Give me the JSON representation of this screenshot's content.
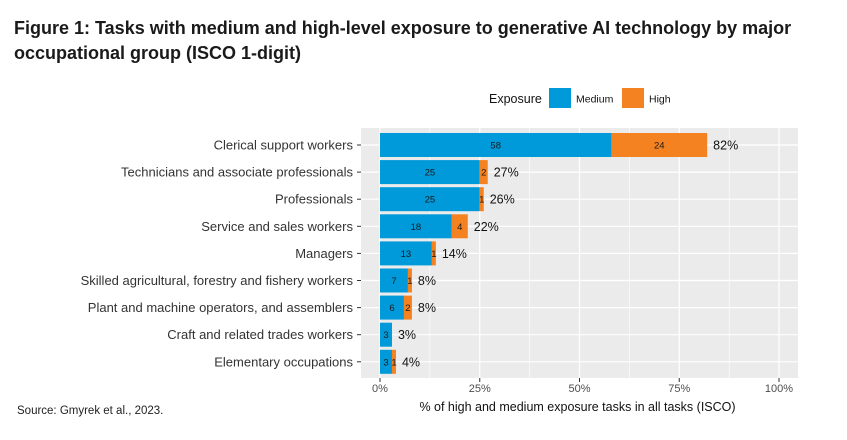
{
  "title": "Figure 1: Tasks with medium and high-level exposure to generative AI technology by major occupational group (ISCO 1-digit)",
  "source": "Source: Gmyrek et al., 2023.",
  "colors": {
    "medium": "#0099D9",
    "high": "#F58220",
    "panel": "#EBEBEB",
    "grid": "#FFFFFF"
  },
  "chart_data": {
    "type": "bar",
    "orientation": "horizontal",
    "stacked": true,
    "title": "Figure 1: Tasks with medium and high-level exposure to generative AI technology by major occupational group (ISCO 1-digit)",
    "xlabel": "% of high and medium exposure tasks in all tasks (ISCO)",
    "ylabel": "",
    "xlim": [
      0,
      100
    ],
    "x_ticks": [
      "0%",
      "25%",
      "50%",
      "75%",
      "100%"
    ],
    "x_tick_values": [
      0,
      25,
      50,
      75,
      100
    ],
    "legend": {
      "title": "Exposure",
      "position": "top-right",
      "entries": [
        "Medium",
        "High"
      ]
    },
    "categories": [
      "Clerical support workers",
      "Technicians and associate professionals",
      "Professionals",
      "Service and sales workers",
      "Managers",
      "Skilled agricultural, forestry and fishery workers",
      "Plant and machine operators, and assemblers",
      "Craft and related trades workers",
      "Elementary occupations"
    ],
    "series": [
      {
        "name": "Medium",
        "values": [
          58,
          25,
          25,
          18,
          13,
          7,
          6,
          3,
          3
        ]
      },
      {
        "name": "High",
        "values": [
          24,
          2,
          1,
          4,
          1,
          1,
          2,
          0,
          1
        ]
      }
    ],
    "totals": [
      "82%",
      "27%",
      "26%",
      "22%",
      "14%",
      "8%",
      "8%",
      "3%",
      "4%"
    ]
  }
}
